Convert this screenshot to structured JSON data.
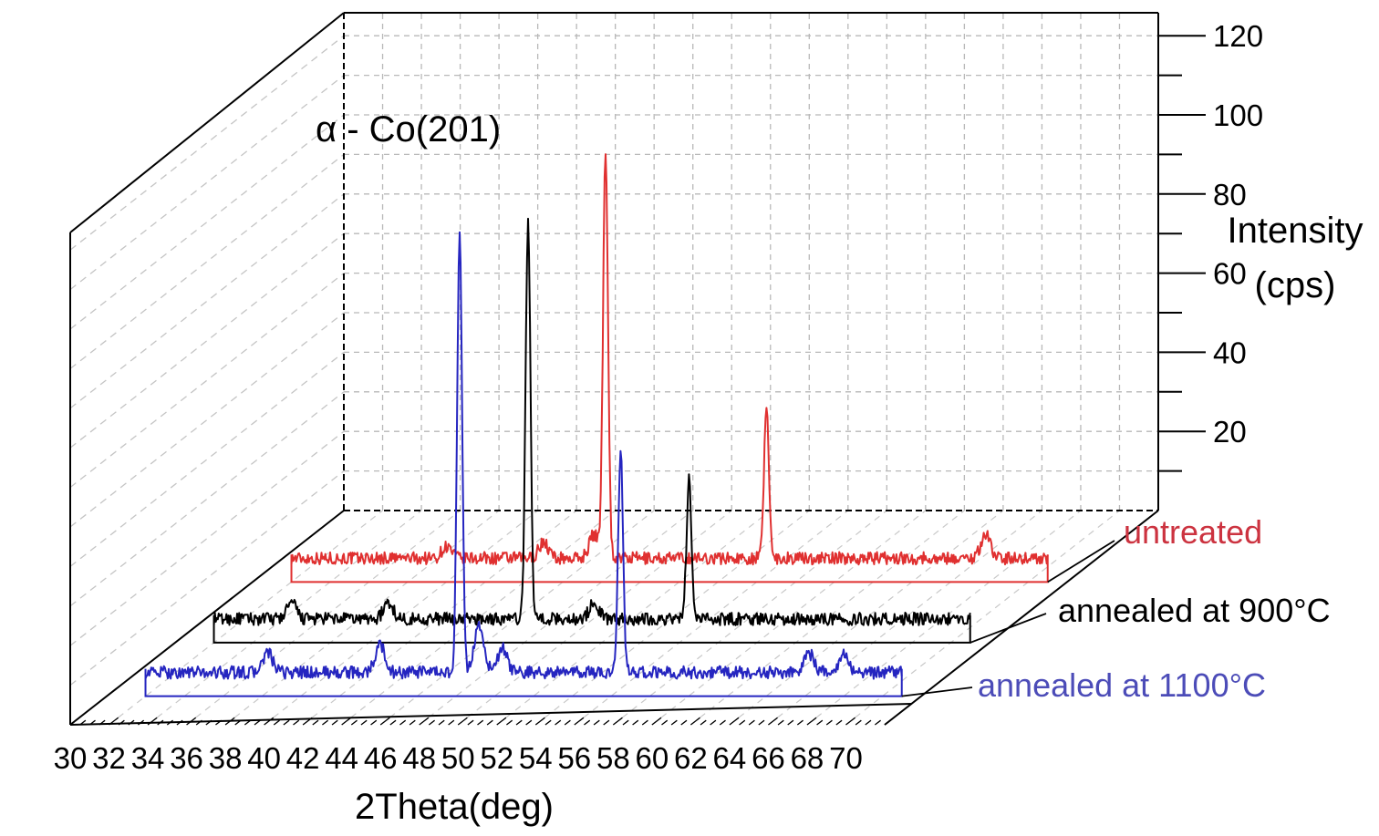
{
  "chart_data": {
    "type": "line",
    "style": "3d-waterfall",
    "title": "",
    "xlabel": "2Theta(deg)",
    "ylabel_lines": [
      "Intensity",
      "(cps)"
    ],
    "xlim": [
      30,
      72
    ],
    "ylim": [
      0,
      130
    ],
    "x_ticks": [
      "30",
      "32",
      "34",
      "36",
      "38",
      "40",
      "42",
      "44",
      "46",
      "48",
      "50",
      "52",
      "54",
      "56",
      "58",
      "60",
      "62",
      "64",
      "66",
      "68",
      "70"
    ],
    "y_ticks": [
      "20",
      "40",
      "60",
      "80",
      "100",
      "120"
    ],
    "grid": true,
    "annotation": "α - Co(201)",
    "series": [
      {
        "name": "untreated",
        "color": "#e03030",
        "baseline": 6,
        "peaks": [
          {
            "x": 48.2,
            "height": 103
          },
          {
            "x": 56.5,
            "height": 38
          },
          {
            "x": 47.6,
            "height": 6
          },
          {
            "x": 45.0,
            "height": 4
          },
          {
            "x": 40.0,
            "height": 3
          },
          {
            "x": 67.8,
            "height": 6
          }
        ]
      },
      {
        "name": "annealed at 900°C",
        "color": "#000000",
        "baseline": 6,
        "peaks": [
          {
            "x": 48.2,
            "height": 100
          },
          {
            "x": 56.5,
            "height": 35
          },
          {
            "x": 41.0,
            "height": 4
          },
          {
            "x": 36.0,
            "height": 4
          },
          {
            "x": 51.6,
            "height": 4
          }
        ]
      },
      {
        "name": "annealed at 1100°C",
        "color": "#2525c0",
        "baseline": 6,
        "peaks": [
          {
            "x": 48.2,
            "height": 111
          },
          {
            "x": 56.5,
            "height": 56
          },
          {
            "x": 44.1,
            "height": 7
          },
          {
            "x": 49.2,
            "height": 12
          },
          {
            "x": 50.4,
            "height": 6
          },
          {
            "x": 38.3,
            "height": 5
          },
          {
            "x": 66.2,
            "height": 5
          },
          {
            "x": 68.0,
            "height": 5
          }
        ]
      }
    ]
  }
}
